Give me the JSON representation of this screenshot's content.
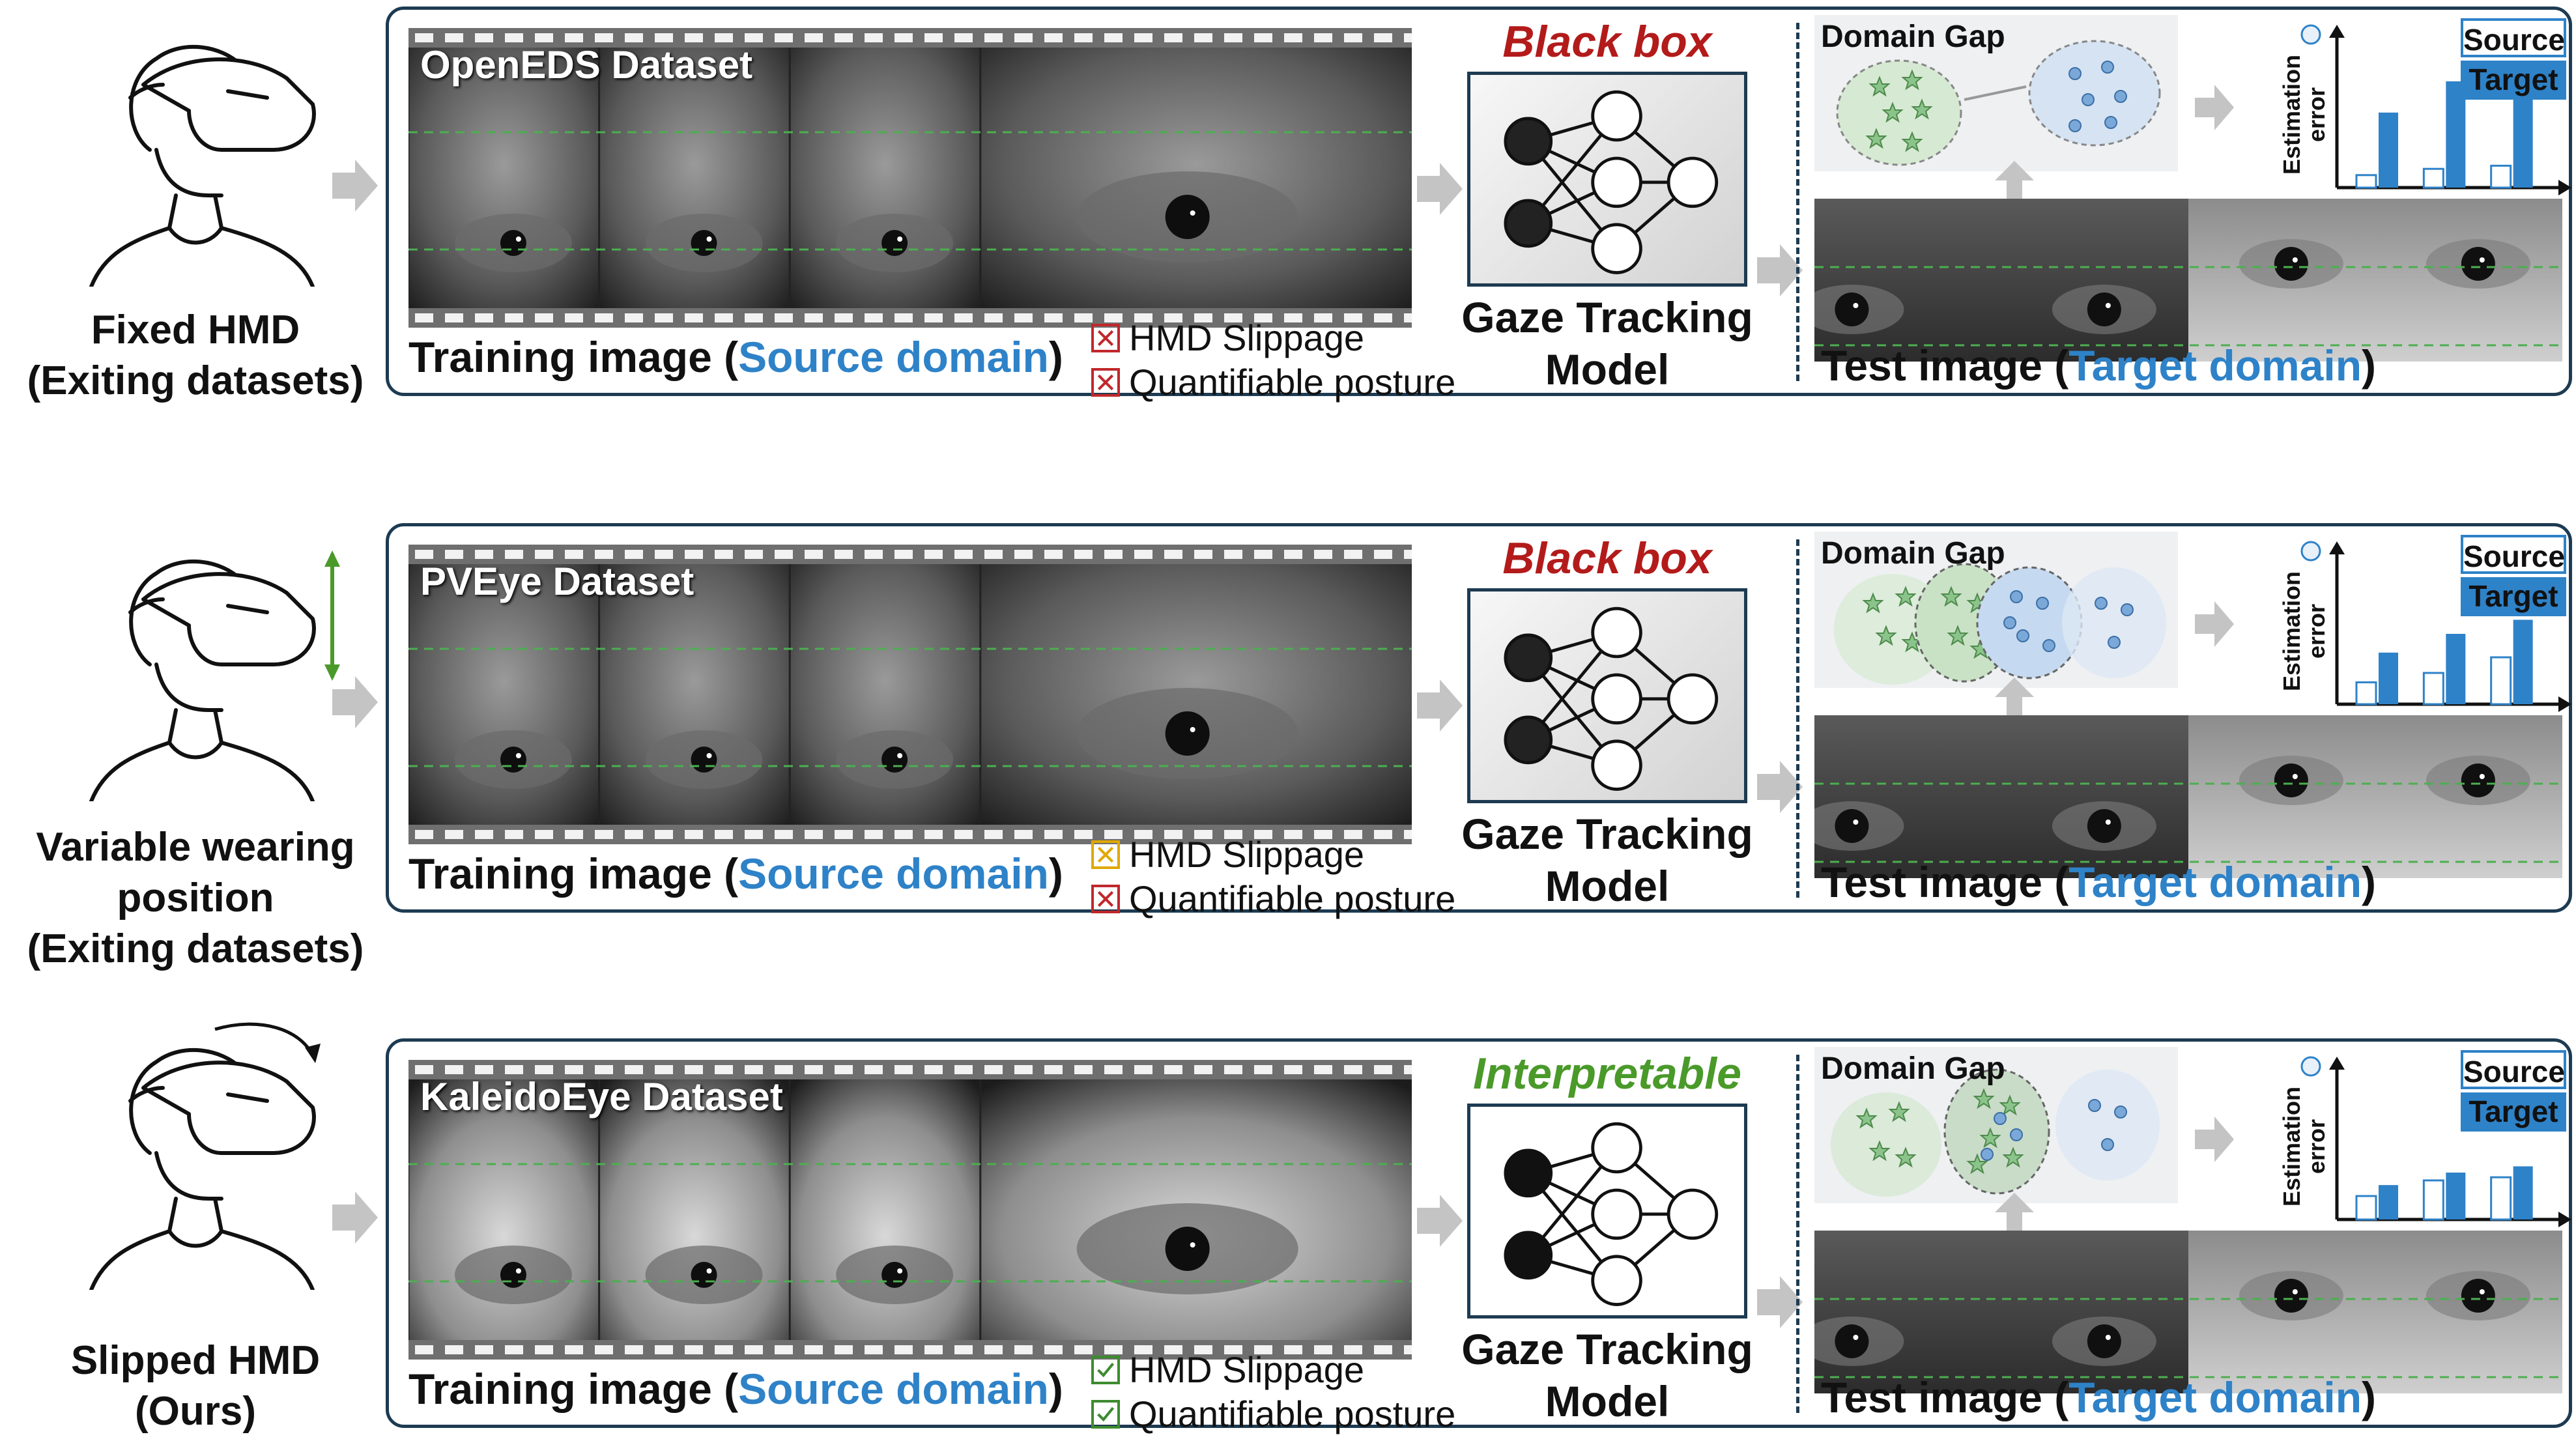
{
  "rows": [
    {
      "left_label_lines": [
        "Fixed HMD",
        "(Exiting datasets)"
      ],
      "dataset_title": "OpenEDS Dataset",
      "train_prefix": "Training image (",
      "train_domain": "Source domain",
      "train_suffix": ")",
      "checks": [
        {
          "label": "HMD Slippage",
          "state": "no",
          "color": "#c0282b"
        },
        {
          "label": "Quantifiable posture",
          "state": "no",
          "color": "#c0282b"
        }
      ],
      "model_title": "Black box",
      "model_title_color": "#b31b1b",
      "model_caption_lines": [
        "Gaze Tracking",
        "Model"
      ],
      "gap_title": "Domain Gap",
      "test_prefix": "Test image  (",
      "test_domain": "Target domain",
      "test_suffix": ")",
      "legend_source": "Source",
      "legend_target": "Target",
      "ylabel_lines": [
        "Estimation",
        "error"
      ]
    },
    {
      "left_label_lines": [
        "Variable wearing",
        "position",
        "(Exiting datasets)"
      ],
      "dataset_title": "PVEye Dataset",
      "train_prefix": "Training image (",
      "train_domain": "Source domain",
      "train_suffix": ")",
      "checks": [
        {
          "label": "HMD Slippage",
          "state": "partial",
          "color": "#e0a800"
        },
        {
          "label": "Quantifiable posture",
          "state": "no",
          "color": "#c0282b"
        }
      ],
      "model_title": "Black box",
      "model_title_color": "#b31b1b",
      "model_caption_lines": [
        "Gaze Tracking",
        "Model"
      ],
      "gap_title": "Domain Gap",
      "test_prefix": "Test image  (",
      "test_domain": "Target domain",
      "test_suffix": ")",
      "legend_source": "Source",
      "legend_target": "Target",
      "ylabel_lines": [
        "Estimation",
        "error"
      ]
    },
    {
      "left_label_lines": [
        "Slipped HMD",
        "(Ours)"
      ],
      "dataset_title": "KaleidoEye Dataset",
      "train_prefix": "Training image (",
      "train_domain": "Source domain",
      "train_suffix": ")",
      "checks": [
        {
          "label": "HMD Slippage",
          "state": "yes",
          "color": "#3d8b2f"
        },
        {
          "label": "Quantifiable posture",
          "state": "yes",
          "color": "#3d8b2f"
        }
      ],
      "model_title": "Interpretable",
      "model_title_color": "#4a9a2a",
      "model_caption_lines": [
        "Gaze Tracking",
        "Model"
      ],
      "gap_title": "Domain Gap",
      "test_prefix": "Test image  (",
      "test_domain": "Target domain",
      "test_suffix": ")",
      "legend_source": "Source",
      "legend_target": "Target",
      "ylabel_lines": [
        "Estimation",
        "error"
      ]
    }
  ],
  "bar_charts": [
    {
      "groups": 3,
      "source": [
        0.08,
        0.12,
        0.14
      ],
      "target": [
        0.48,
        0.68,
        0.78
      ]
    },
    {
      "groups": 3,
      "source": [
        0.14,
        0.2,
        0.3
      ],
      "target": [
        0.33,
        0.45,
        0.54
      ]
    },
    {
      "groups": 3,
      "source": [
        0.15,
        0.25,
        0.27
      ],
      "target": [
        0.22,
        0.3,
        0.34
      ]
    }
  ],
  "colors": {
    "accent_blue": "#2e82c8",
    "panel_border": "#1d3b52",
    "arrow_gray": "#c4c4c4"
  }
}
